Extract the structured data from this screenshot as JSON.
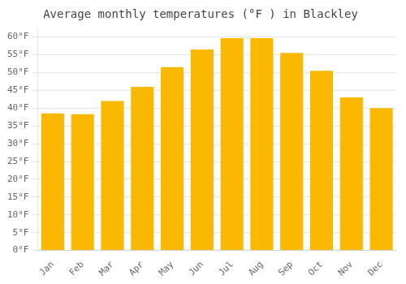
{
  "chart_data": {
    "type": "bar",
    "title": "Average monthly temperatures (°F ) in Blackley",
    "categories": [
      "Jan",
      "Feb",
      "Mar",
      "Apr",
      "May",
      "Jun",
      "Jul",
      "Aug",
      "Sep",
      "Oct",
      "Nov",
      "Dec"
    ],
    "values": [
      38.5,
      38.3,
      42.0,
      46.0,
      51.5,
      56.5,
      59.7,
      59.7,
      55.5,
      50.5,
      43.0,
      40.0
    ],
    "color": "#FBB800",
    "ylim": [
      0,
      62
    ],
    "yticks": [
      {
        "value": 0,
        "label": "0°F"
      },
      {
        "value": 5,
        "label": "5°F"
      },
      {
        "value": 10,
        "label": "10°F"
      },
      {
        "value": 15,
        "label": "15°F"
      },
      {
        "value": 20,
        "label": "20°F"
      },
      {
        "value": 25,
        "label": "25°F"
      },
      {
        "value": 30,
        "label": "30°F"
      },
      {
        "value": 35,
        "label": "35°F"
      },
      {
        "value": 40,
        "label": "40°F"
      },
      {
        "value": 45,
        "label": "45°F"
      },
      {
        "value": 50,
        "label": "50°F"
      },
      {
        "value": 55,
        "label": "55°F"
      },
      {
        "value": 60,
        "label": "60°F"
      }
    ],
    "grid": true
  }
}
